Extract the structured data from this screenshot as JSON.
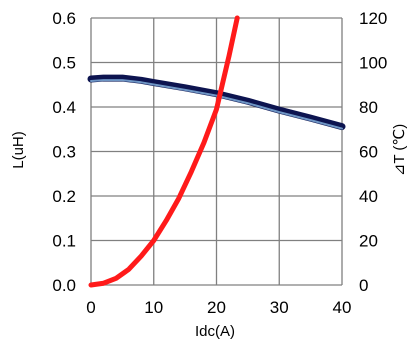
{
  "chart_data": {
    "type": "line",
    "xlabel": "Idc(A)",
    "ylabel_left": "L(uH)",
    "ylabel_right": "⊿T (℃)",
    "xlim": [
      0,
      40
    ],
    "ylim_left": [
      0,
      0.6
    ],
    "ylim_right": [
      0,
      120
    ],
    "x_ticks": [
      "0",
      "10",
      "20",
      "30",
      "40"
    ],
    "y_left_ticks": [
      "0.0",
      "0.1",
      "0.2",
      "0.3",
      "0.4",
      "0.5",
      "0.6"
    ],
    "y_right_ticks": [
      "0",
      "20",
      "40",
      "60",
      "80",
      "100",
      "120"
    ],
    "grid": true,
    "colors": {
      "inductance_outer": "#0d1450",
      "inductance_inner": "#6e95c4",
      "temperature": "#ff1a1a",
      "grid": "#808080"
    },
    "series": [
      {
        "axis": "left",
        "x": [
          0,
          2,
          5,
          8,
          10,
          15,
          20,
          25,
          30,
          35,
          40
        ],
        "y": [
          0.463,
          0.465,
          0.465,
          0.46,
          0.455,
          0.443,
          0.43,
          0.413,
          0.393,
          0.375,
          0.356
        ]
      },
      {
        "axis": "right",
        "x": [
          0,
          2,
          4,
          6,
          8,
          10,
          12,
          14,
          16,
          18,
          20,
          22,
          23.3
        ],
        "y": [
          0,
          0.8,
          3,
          7,
          13,
          20,
          29,
          39,
          51,
          64,
          79,
          103,
          120
        ]
      }
    ]
  }
}
